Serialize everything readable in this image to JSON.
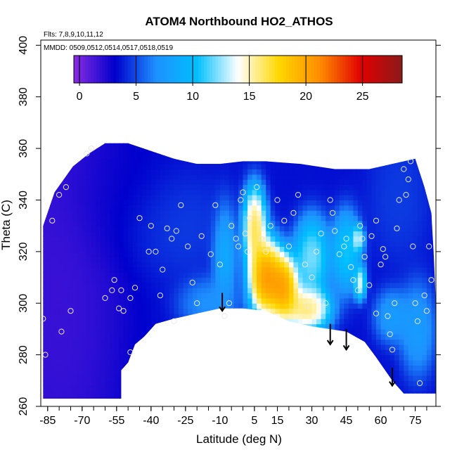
{
  "chart_data": {
    "type": "heatmap",
    "title": "ATOM4 Northbound HO2_ATHOS",
    "flights_label": "Flts: 7,8,9,10,11,12",
    "dates_label": "MMDD: 0509,0512,0514,0517,0518,0519",
    "xlabel": "Latitude (deg N)",
    "ylabel": "Theta (C)",
    "xlim": [
      -88,
      84
    ],
    "ylim": [
      260,
      402
    ],
    "x_ticks": [
      "-85",
      "-70",
      "-55",
      "-40",
      "-25",
      "-10",
      "5",
      "15",
      "30",
      "45",
      "60",
      "75"
    ],
    "x_tick_values": [
      -85,
      -70,
      -55,
      -40,
      -25,
      -10,
      5,
      15,
      30,
      45,
      60,
      75
    ],
    "y_ticks": [
      "260",
      "280",
      "300",
      "320",
      "340",
      "360",
      "380",
      "400"
    ],
    "y_tick_values": [
      260,
      280,
      300,
      320,
      340,
      360,
      380,
      400
    ],
    "colorbar": {
      "range": [
        -0.5,
        28.5
      ],
      "ticks": [
        "0",
        "5",
        "10",
        "15",
        "20",
        "25"
      ],
      "tick_values": [
        0,
        5,
        10,
        15,
        20,
        25
      ],
      "colors": [
        "#8a2be2",
        "#0000cd",
        "#1e90ff",
        "#00bfff",
        "#ffffff",
        "#ffd700",
        "#ff8c00",
        "#e00000",
        "#8b1a1a"
      ]
    },
    "field_outline": [
      [
        -87,
        263
      ],
      [
        -87,
        330
      ],
      [
        -82,
        343
      ],
      [
        -74,
        353
      ],
      [
        -67,
        358
      ],
      [
        -60,
        362
      ],
      [
        -50,
        362
      ],
      [
        -40,
        359
      ],
      [
        -30,
        356
      ],
      [
        -20,
        354
      ],
      [
        -10,
        354
      ],
      [
        0,
        355
      ],
      [
        10,
        355
      ],
      [
        25,
        354
      ],
      [
        40,
        352
      ],
      [
        55,
        352
      ],
      [
        65,
        354
      ],
      [
        75,
        356
      ],
      [
        79,
        345
      ],
      [
        82,
        335
      ],
      [
        83,
        320
      ],
      [
        84,
        300
      ],
      [
        84,
        265
      ],
      [
        70,
        265
      ],
      [
        65,
        270
      ],
      [
        58,
        279
      ],
      [
        53,
        285
      ],
      [
        45,
        289
      ],
      [
        30,
        291
      ],
      [
        20,
        293
      ],
      [
        10,
        297
      ],
      [
        0,
        298
      ],
      [
        -10,
        298
      ],
      [
        -20,
        296
      ],
      [
        -30,
        294
      ],
      [
        -38,
        292
      ],
      [
        -43,
        287
      ],
      [
        -47,
        284
      ],
      [
        -50,
        277
      ],
      [
        -53,
        274
      ],
      [
        -53,
        263
      ]
    ],
    "hotspots": [
      {
        "lat": -80,
        "theta": 310,
        "value": 1.0,
        "sx": 22,
        "sy": 80
      },
      {
        "lat": -55,
        "theta": 340,
        "value": 3.0,
        "sx": 18,
        "sy": 20
      },
      {
        "lat": -30,
        "theta": 330,
        "value": 5.0,
        "sx": 20,
        "sy": 15
      },
      {
        "lat": -15,
        "theta": 300,
        "value": 8.0,
        "sx": 10,
        "sy": 8
      },
      {
        "lat": -8,
        "theta": 320,
        "value": 11.0,
        "sx": 4,
        "sy": 14
      },
      {
        "lat": 5,
        "theta": 330,
        "value": 21.0,
        "sx": 4,
        "sy": 12
      },
      {
        "lat": 10,
        "theta": 310,
        "value": 26.0,
        "sx": 6,
        "sy": 12
      },
      {
        "lat": 18,
        "theta": 306,
        "value": 25.0,
        "sx": 5,
        "sy": 10
      },
      {
        "lat": 28,
        "theta": 298,
        "value": 20.0,
        "sx": 8,
        "sy": 7
      },
      {
        "lat": 30,
        "theta": 318,
        "value": 15.0,
        "sx": 6,
        "sy": 12
      },
      {
        "lat": 45,
        "theta": 320,
        "value": 13.0,
        "sx": 5,
        "sy": 12
      },
      {
        "lat": 50,
        "theta": 325,
        "value": 17.0,
        "sx": 2,
        "sy": 4
      },
      {
        "lat": 51,
        "theta": 308,
        "value": 17.0,
        "sx": 2,
        "sy": 5
      },
      {
        "lat": 65,
        "theta": 295,
        "value": 9.0,
        "sx": 6,
        "sy": 8
      },
      {
        "lat": 76,
        "theta": 290,
        "value": 9.0,
        "sx": 6,
        "sy": 14
      },
      {
        "lat": 68,
        "theta": 340,
        "value": 5.0,
        "sx": 10,
        "sy": 18
      }
    ],
    "background_value": 3.5,
    "sample_points": [
      [
        -87,
        294
      ],
      [
        -86,
        280
      ],
      [
        -83,
        332
      ],
      [
        -80,
        342
      ],
      [
        -79,
        289
      ],
      [
        -77,
        345
      ],
      [
        -75,
        297
      ],
      [
        -68,
        358
      ],
      [
        -66,
        360
      ],
      [
        -60,
        302
      ],
      [
        -57,
        305
      ],
      [
        -56,
        309
      ],
      [
        -54,
        298
      ],
      [
        -53,
        305
      ],
      [
        -52,
        297
      ],
      [
        -49,
        302
      ],
      [
        -49,
        281
      ],
      [
        -47,
        306
      ],
      [
        -45,
        333
      ],
      [
        -41,
        320
      ],
      [
        -40,
        330
      ],
      [
        -38,
        320
      ],
      [
        -36,
        303
      ],
      [
        -35,
        313
      ],
      [
        -33,
        329
      ],
      [
        -31,
        325
      ],
      [
        -30,
        293
      ],
      [
        -29,
        328
      ],
      [
        -27,
        338
      ],
      [
        -24,
        322
      ],
      [
        -22,
        308
      ],
      [
        -20,
        300
      ],
      [
        -18,
        326
      ],
      [
        -14,
        319
      ],
      [
        -12,
        338
      ],
      [
        -10,
        315
      ],
      [
        -8,
        295
      ],
      [
        -6,
        300
      ],
      [
        -5,
        330
      ],
      [
        -3,
        325
      ],
      [
        -2,
        322
      ],
      [
        -1,
        340
      ],
      [
        0,
        343
      ],
      [
        1,
        327
      ],
      [
        2,
        320
      ],
      [
        3,
        333
      ],
      [
        6,
        345
      ],
      [
        8,
        325
      ],
      [
        10,
        320
      ],
      [
        12,
        330
      ],
      [
        15,
        340
      ],
      [
        18,
        332
      ],
      [
        20,
        322
      ],
      [
        22,
        335
      ],
      [
        24,
        342
      ],
      [
        27,
        315
      ],
      [
        28,
        299
      ],
      [
        30,
        310
      ],
      [
        32,
        320
      ],
      [
        34,
        327
      ],
      [
        36,
        300
      ],
      [
        38,
        340
      ],
      [
        39,
        335
      ],
      [
        40,
        328
      ],
      [
        42,
        319
      ],
      [
        44,
        322
      ],
      [
        45,
        325
      ],
      [
        47,
        314
      ],
      [
        48,
        309
      ],
      [
        50,
        305
      ],
      [
        51,
        330
      ],
      [
        52,
        325
      ],
      [
        53,
        318
      ],
      [
        55,
        307
      ],
      [
        56,
        326
      ],
      [
        58,
        332
      ],
      [
        58,
        296
      ],
      [
        60,
        315
      ],
      [
        61,
        321
      ],
      [
        62,
        318
      ],
      [
        63,
        295
      ],
      [
        64,
        288
      ],
      [
        65,
        282
      ],
      [
        66,
        300
      ],
      [
        67,
        329
      ],
      [
        68,
        340
      ],
      [
        70,
        352
      ],
      [
        71,
        342
      ],
      [
        72,
        348
      ],
      [
        73,
        355
      ],
      [
        74,
        322
      ],
      [
        75,
        300
      ],
      [
        76,
        293
      ],
      [
        77,
        269
      ],
      [
        79,
        303
      ],
      [
        80,
        297
      ],
      [
        81,
        322
      ],
      [
        82,
        309
      ]
    ],
    "arrows": [
      {
        "lat": -9,
        "theta_top": 304,
        "theta_tip": 297
      },
      {
        "lat": 38,
        "theta_top": 292,
        "theta_tip": 284
      },
      {
        "lat": 45,
        "theta_top": 290,
        "theta_tip": 282
      },
      {
        "lat": 65,
        "theta_top": 275,
        "theta_tip": 268
      }
    ]
  }
}
